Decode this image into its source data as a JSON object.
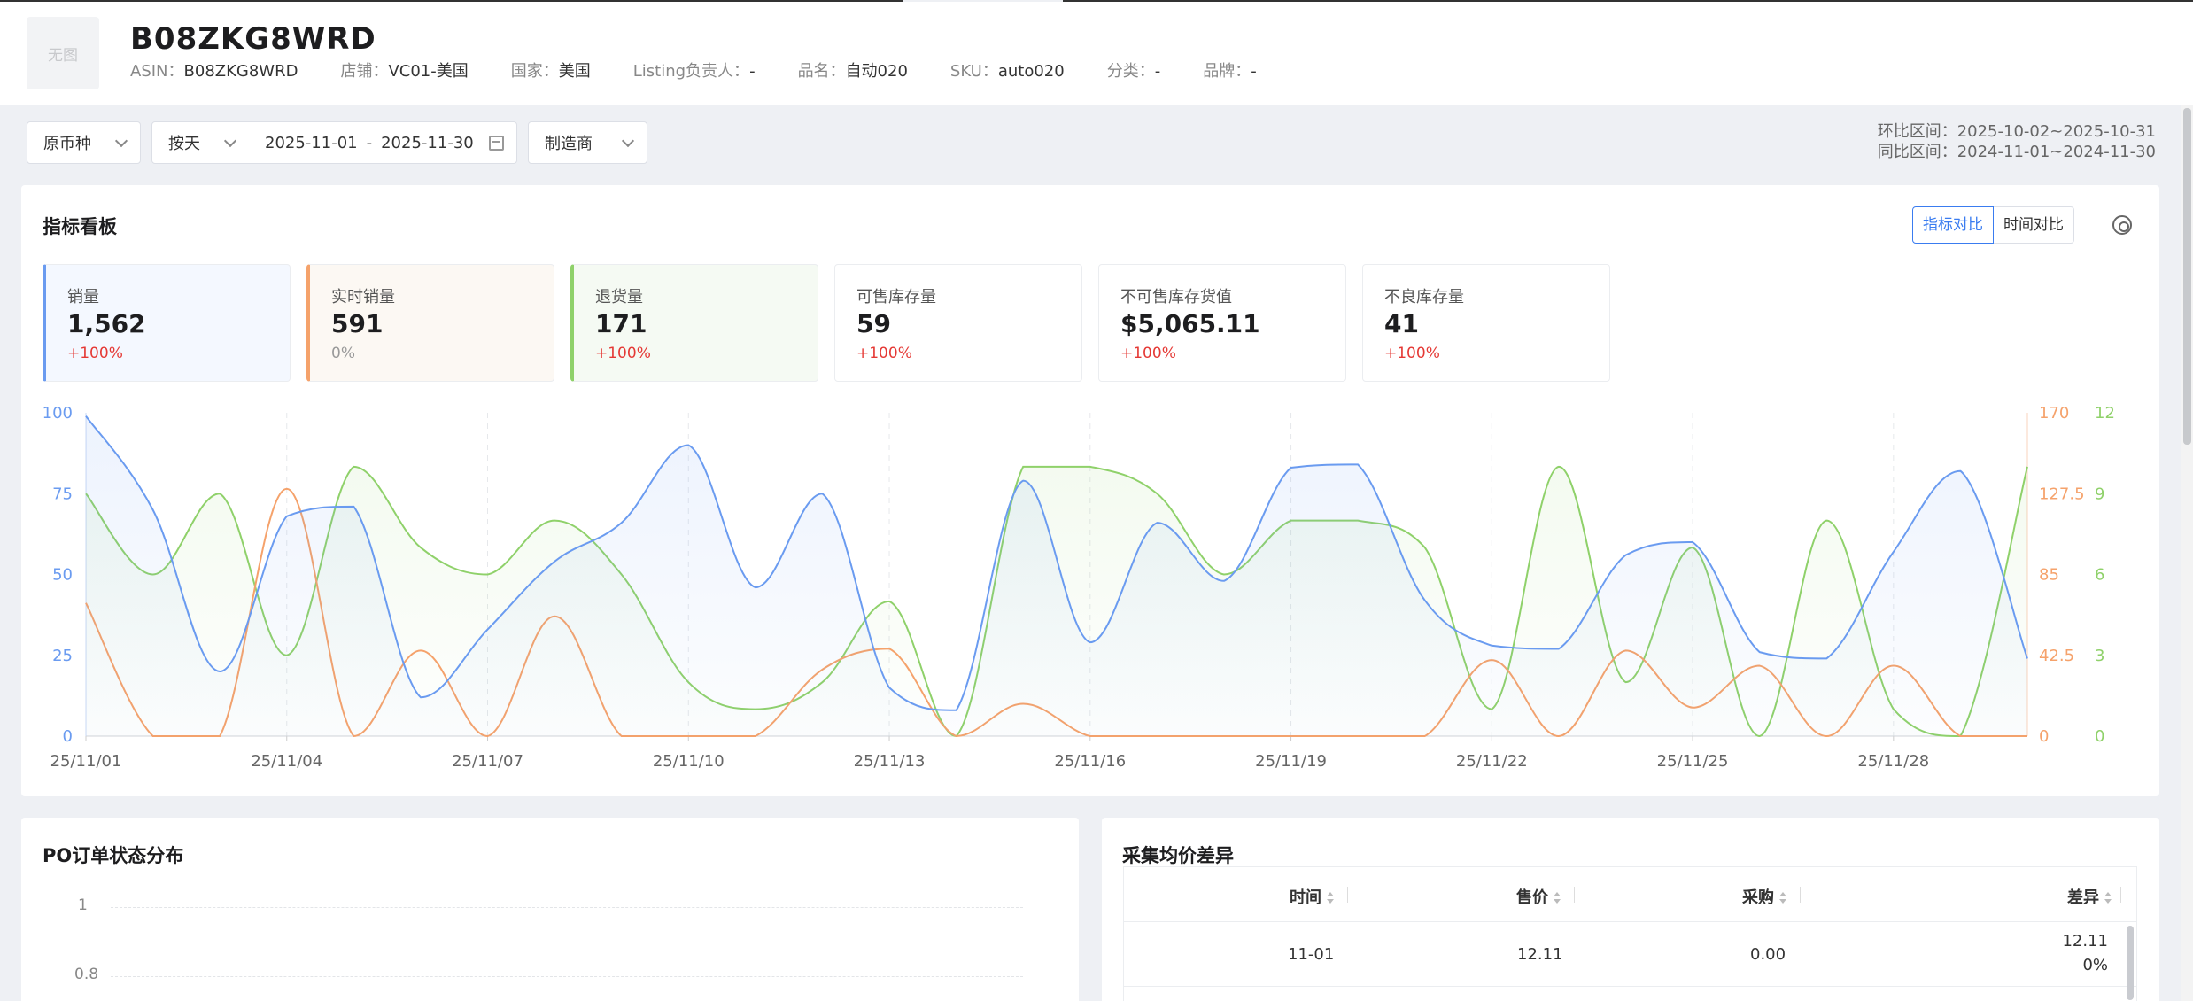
{
  "product": {
    "thumb_text": "无图",
    "title": "B08ZKG8WRD",
    "meta": [
      {
        "label": "ASIN：",
        "value": "B08ZKG8WRD"
      },
      {
        "label": "店铺：",
        "value": "VC01-美国"
      },
      {
        "label": "国家：",
        "value": "美国"
      },
      {
        "label": "Listing负责人：",
        "value": "-"
      },
      {
        "label": "品名：",
        "value": "自动020"
      },
      {
        "label": "SKU：",
        "value": "auto020"
      },
      {
        "label": "分类：",
        "value": "-"
      },
      {
        "label": "品牌：",
        "value": "-"
      }
    ]
  },
  "filters": {
    "currency": "原币种",
    "granularity": "按天",
    "date_start": "2025-11-01",
    "date_sep": "-",
    "date_end": "2025-11-30",
    "role": "制造商",
    "mom_range": "环比区间：2025-10-02~2025-10-31",
    "yoy_range": "同比区间：2024-11-01~2024-11-30"
  },
  "dashboard": {
    "title": "指标看板",
    "seg_metric": "指标对比",
    "seg_time": "时间对比",
    "kpis": [
      {
        "label": "销量",
        "value": "1,562",
        "change": "+100%"
      },
      {
        "label": "实时销量",
        "value": "591",
        "change": "0%"
      },
      {
        "label": "退货量",
        "value": "171",
        "change": "+100%"
      },
      {
        "label": "可售库存量",
        "value": "59",
        "change": "+100%"
      },
      {
        "label": "不可售库存货值",
        "value": "$5,065.11",
        "change": "+100%"
      },
      {
        "label": "不良库存量",
        "value": "41",
        "change": "+100%"
      }
    ]
  },
  "chart_data": {
    "type": "line",
    "x": [
      "25/11/01",
      "25/11/02",
      "25/11/03",
      "25/11/04",
      "25/11/05",
      "25/11/06",
      "25/11/07",
      "25/11/08",
      "25/11/09",
      "25/11/10",
      "25/11/11",
      "25/11/12",
      "25/11/13",
      "25/11/14",
      "25/11/15",
      "25/11/16",
      "25/11/17",
      "25/11/18",
      "25/11/19",
      "25/11/20",
      "25/11/21",
      "25/11/22",
      "25/11/23",
      "25/11/24",
      "25/11/25",
      "25/11/26",
      "25/11/27",
      "25/11/28",
      "25/11/29",
      "25/11/30"
    ],
    "x_ticks": [
      "25/11/01",
      "25/11/04",
      "25/11/07",
      "25/11/10",
      "25/11/13",
      "25/11/16",
      "25/11/19",
      "25/11/22",
      "25/11/25",
      "25/11/28"
    ],
    "axes": [
      {
        "position": "left",
        "color": "#6a9bf0",
        "range": [
          0,
          100
        ],
        "ticks": [
          "0",
          "25",
          "50",
          "75",
          "100"
        ]
      },
      {
        "position": "right",
        "color": "#f5a26b",
        "range": [
          0,
          170
        ],
        "ticks": [
          "0",
          "42.5",
          "85",
          "127.5",
          "170"
        ]
      },
      {
        "position": "right-outer",
        "color": "#8fd16a",
        "range": [
          0,
          12
        ],
        "ticks": [
          "0",
          "3",
          "6",
          "9",
          "12"
        ]
      }
    ],
    "series": [
      {
        "axis": 0,
        "color": "#6a9bf0",
        "area": true,
        "values": [
          99,
          70,
          20,
          68,
          71,
          12,
          33,
          54,
          66,
          90,
          46,
          75,
          15,
          8,
          79,
          29,
          66,
          48,
          83,
          84,
          42,
          28,
          27,
          56,
          60,
          26,
          24,
          57,
          82,
          24
        ]
      },
      {
        "axis": 1,
        "color": "#f5a26b",
        "area": false,
        "values": [
          70,
          0,
          0,
          130,
          0,
          45,
          0,
          63,
          0,
          0,
          0,
          35,
          46,
          0,
          17,
          0,
          0,
          0,
          0,
          0,
          0,
          40,
          0,
          45,
          15,
          37,
          0,
          37,
          0,
          0
        ]
      },
      {
        "axis": 2,
        "color": "#8fd16a",
        "area": true,
        "values": [
          9,
          6,
          9,
          3,
          10,
          7,
          6,
          8,
          6,
          2,
          1,
          2,
          5,
          0,
          10,
          10,
          9,
          6,
          8,
          8,
          7,
          1,
          10,
          2,
          7,
          0,
          8,
          1,
          0,
          10
        ]
      }
    ]
  },
  "po_panel": {
    "title": "PO订单状态分布",
    "y_ticks": [
      "1",
      "0.8"
    ]
  },
  "price_panel": {
    "title": "采集均价差异",
    "columns": [
      "时间",
      "售价",
      "采购",
      "差异"
    ],
    "rows": [
      {
        "time": "11-01",
        "price": "12.11",
        "purchase": "0.00",
        "diff": "12.11",
        "diff_pct": "0%"
      }
    ]
  }
}
